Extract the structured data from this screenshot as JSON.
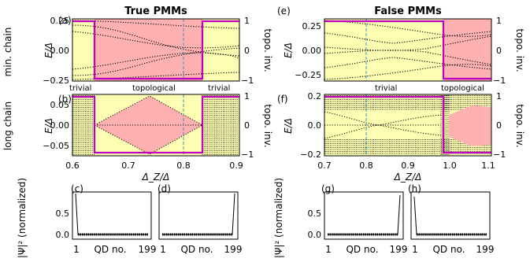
{
  "titles": {
    "left": "True PMMs",
    "right": "False PMMs"
  },
  "row_labels": {
    "min_chain": "min. chain",
    "long_chain": "long chain"
  },
  "panel_letters": {
    "a": "(a)",
    "b": "(b)",
    "c": "(c)",
    "d": "(d)",
    "e": "(e)",
    "f": "(f)",
    "g": "(g)",
    "h": "(h)"
  },
  "axis": {
    "energy": "E/Δ",
    "topo": "topo. inv.",
    "xlabel": "Δ_Z/Δ",
    "psi": "|Ψ|² (normalized)",
    "qd": "QD no."
  },
  "region_labels": {
    "trivial": "trivial",
    "topological": "topological"
  },
  "colors": {
    "trivial": "#ffffb3",
    "topological": "#ffb0b0",
    "invariant": "#c000c0",
    "marker": "#3399bb",
    "spectrum": "#000000"
  },
  "chart_data": [
    {
      "panel": "a",
      "type": "line",
      "x_range": [
        0.6,
        0.9
      ],
      "y_range": [
        -0.25,
        0.25
      ],
      "yticks": [
        "0.25",
        "0.00",
        "−0.25"
      ],
      "right_ticks": [
        "1",
        "0",
        "−1"
      ],
      "topo_invariant": [
        {
          "x": 0.6,
          "y": 1
        },
        {
          "x": 0.64,
          "y": 1
        },
        {
          "x": 0.64,
          "y": -1
        },
        {
          "x": 0.835,
          "y": -1
        },
        {
          "x": 0.835,
          "y": 1
        },
        {
          "x": 0.9,
          "y": 1
        }
      ],
      "marker_x": 0.8
    },
    {
      "panel": "b",
      "type": "line",
      "x_range": [
        0.6,
        0.9
      ],
      "y_range": [
        -0.075,
        0.075
      ],
      "xticks": [
        "0.6",
        "0.7",
        "0.8",
        "0.9"
      ],
      "yticks": [
        "0.05",
        "0.00",
        "−0.05"
      ],
      "right_ticks": [
        "1",
        "0",
        "−1"
      ],
      "topo_invariant": [
        {
          "x": 0.6,
          "y": 1
        },
        {
          "x": 0.64,
          "y": 1
        },
        {
          "x": 0.64,
          "y": -1
        },
        {
          "x": 0.835,
          "y": -1
        },
        {
          "x": 0.835,
          "y": 1
        },
        {
          "x": 0.9,
          "y": 1
        }
      ],
      "marker_x": 0.8
    },
    {
      "panel": "e",
      "type": "line",
      "x_range": [
        0.7,
        1.1
      ],
      "y_range": [
        -0.33,
        0.33
      ],
      "yticks": [
        "0.25",
        "0.00",
        "−0.25"
      ],
      "right_ticks": [
        "1",
        "0",
        "−1"
      ],
      "topo_invariant": [
        {
          "x": 0.7,
          "y": 1
        },
        {
          "x": 0.985,
          "y": 1
        },
        {
          "x": 0.985,
          "y": -1
        },
        {
          "x": 1.1,
          "y": -1
        }
      ],
      "marker_x": 0.8
    },
    {
      "panel": "f",
      "type": "line",
      "x_range": [
        0.7,
        1.1
      ],
      "y_range": [
        -0.21,
        0.21
      ],
      "xticks": [
        "0.7",
        "0.8",
        "0.9",
        "1.0",
        "1.1"
      ],
      "yticks": [
        "0.2",
        "0.0",
        "−0.2"
      ],
      "right_ticks": [
        "1",
        "0",
        "−1"
      ],
      "topo_invariant": [
        {
          "x": 0.7,
          "y": 1
        },
        {
          "x": 0.985,
          "y": 1
        },
        {
          "x": 0.985,
          "y": -1
        },
        {
          "x": 1.1,
          "y": -1
        }
      ],
      "marker_x": 0.8
    },
    {
      "panel": "c",
      "type": "line",
      "x_range": [
        1,
        199
      ],
      "y_range": [
        0,
        1
      ],
      "xticks": [
        "1",
        "199"
      ],
      "yticks": [
        "0.5",
        "0.0"
      ],
      "peak_at": 1
    },
    {
      "panel": "d",
      "type": "line",
      "x_range": [
        1,
        199
      ],
      "y_range": [
        0,
        1
      ],
      "xticks": [
        "1",
        "199"
      ],
      "peak_at": 199
    },
    {
      "panel": "g",
      "type": "line",
      "x_range": [
        1,
        199
      ],
      "y_range": [
        0,
        1
      ],
      "xticks": [
        "1",
        "199"
      ],
      "yticks": [
        "0.5",
        "0.0"
      ],
      "peak_at": 199
    },
    {
      "panel": "h",
      "type": "line",
      "x_range": [
        1,
        199
      ],
      "y_range": [
        0,
        1
      ],
      "xticks": [
        "1",
        "199"
      ],
      "peak_at": 1
    }
  ]
}
